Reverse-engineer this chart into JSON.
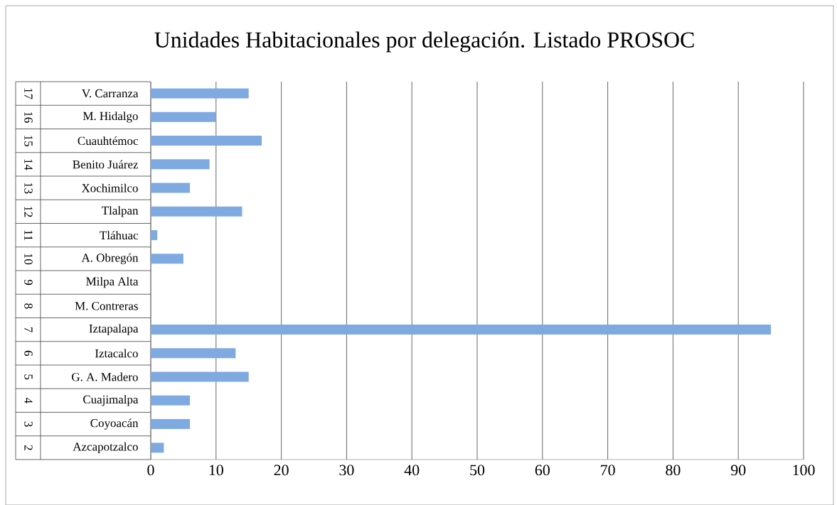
{
  "chart_data": {
    "type": "bar",
    "orientation": "horizontal",
    "title": "Unidades Habitacionales por delegación. Listado PROSOC",
    "categories": [
      "V. Carranza",
      "M. Hidalgo",
      "Cuauhtémoc",
      "Benito Juárez",
      "Xochimilco",
      "Tlalpan",
      "Tláhuac",
      "A. Obregón",
      "Milpa Alta",
      "M. Contreras",
      "Iztapalapa",
      "Iztacalco",
      "G. A. Madero",
      "Cuajimalpa",
      "Coyoacán",
      "Azcapotzalco"
    ],
    "values": [
      15,
      10,
      17,
      9,
      6,
      14,
      1,
      5,
      0,
      0,
      95,
      13,
      15,
      6,
      6,
      2
    ],
    "annotations": [
      "17",
      "16",
      "15",
      "14",
      "13",
      "12",
      "11",
      "10",
      "9",
      "8",
      "7",
      "6",
      "5",
      "4",
      "3",
      "2"
    ],
    "color": "#7ea9e1",
    "xlim": [
      0,
      100
    ],
    "xticks": [
      0,
      10,
      20,
      30,
      40,
      50,
      60,
      70,
      80,
      90,
      100
    ],
    "grid": "x"
  }
}
